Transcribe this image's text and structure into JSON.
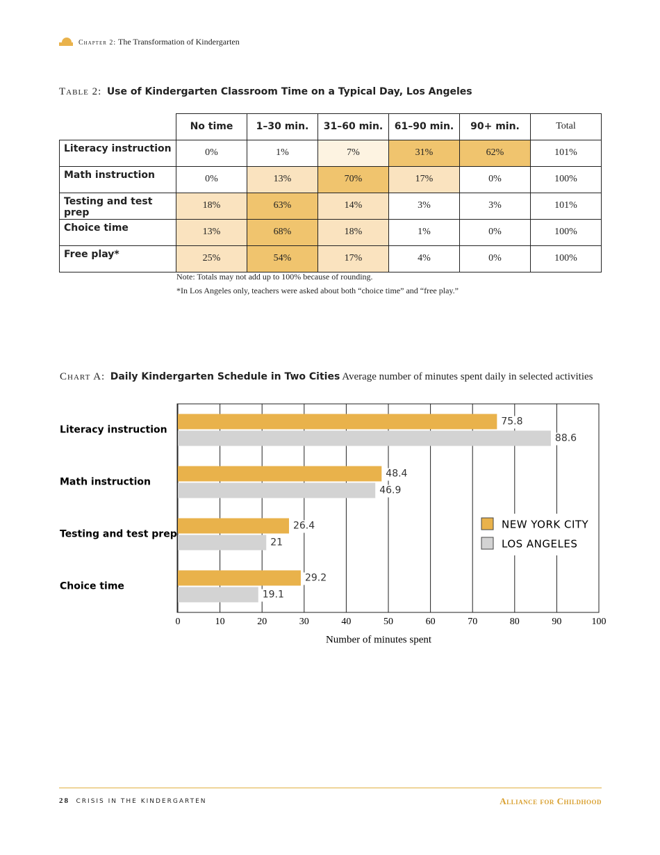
{
  "header": {
    "chapter": "Chapter 2:",
    "title": "The Transformation of Kindergarten"
  },
  "table": {
    "label": "Table 2:",
    "title": "Use of Kindergarten Classroom Time on a Typical Day, Los Angeles",
    "columns": [
      "No time",
      "1–30 min.",
      "31–60 min.",
      "61–90 min.",
      "90+ min.",
      "Total"
    ],
    "rows": [
      {
        "label": "Literacy instruction",
        "cells": [
          "0%",
          "1%",
          "7%",
          "31%",
          "62%",
          "101%"
        ],
        "fills": [
          "#ffffff",
          "#ffffff",
          "#fdf3e1",
          "#f0c46e",
          "#f0c46e",
          "#ffffff"
        ]
      },
      {
        "label": "Math instruction",
        "cells": [
          "0%",
          "13%",
          "70%",
          "17%",
          "0%",
          "100%"
        ],
        "fills": [
          "#ffffff",
          "#fae3bf",
          "#f0c46e",
          "#fae3bf",
          "#ffffff",
          "#ffffff"
        ]
      },
      {
        "label": "Testing and test prep",
        "cells": [
          "18%",
          "63%",
          "14%",
          "3%",
          "3%",
          "101%"
        ],
        "fills": [
          "#fae3bf",
          "#f0c46e",
          "#fae3bf",
          "#ffffff",
          "#ffffff",
          "#ffffff"
        ]
      },
      {
        "label": "Choice time",
        "cells": [
          "13%",
          "68%",
          "18%",
          "1%",
          "0%",
          "100%"
        ],
        "fills": [
          "#fae3bf",
          "#f0c46e",
          "#fae3bf",
          "#ffffff",
          "#ffffff",
          "#ffffff"
        ]
      },
      {
        "label": "Free play*",
        "cells": [
          "25%",
          "54%",
          "17%",
          "4%",
          "0%",
          "100%"
        ],
        "fills": [
          "#fae3bf",
          "#f0c46e",
          "#fae3bf",
          "#ffffff",
          "#ffffff",
          "#ffffff"
        ]
      }
    ],
    "notes": [
      "Note: Totals may not add up to 100% because of rounding.",
      "*In Los Angeles only, teachers were asked about both “choice time” and “free play.”"
    ]
  },
  "chart_data": {
    "type": "bar",
    "orientation": "horizontal",
    "label": "Chart A:",
    "title": "Daily Kindergarten Schedule in Two Cities",
    "subtitle": "Average number of minutes spent daily in selected activities",
    "categories": [
      "Literacy instruction",
      "Math instruction",
      "Testing and test prep",
      "Choice time"
    ],
    "series": [
      {
        "name": "NEW YORK CITY",
        "color": "#e9b24b",
        "values": [
          75.8,
          48.4,
          26.4,
          29.2
        ]
      },
      {
        "name": "LOS ANGELES",
        "color": "#d3d3d3",
        "values": [
          88.6,
          46.9,
          21,
          19.1
        ]
      }
    ],
    "xlim": [
      0,
      100
    ],
    "xticks": [
      0,
      10,
      20,
      30,
      40,
      50,
      60,
      70,
      80,
      90,
      100
    ],
    "xlabel": "Number of minutes spent",
    "grid": true,
    "legend": "right"
  },
  "footer": {
    "page": "28",
    "book": "CRISIS IN THE KINDERGARTEN",
    "publisher": "Alliance for Childhood"
  }
}
